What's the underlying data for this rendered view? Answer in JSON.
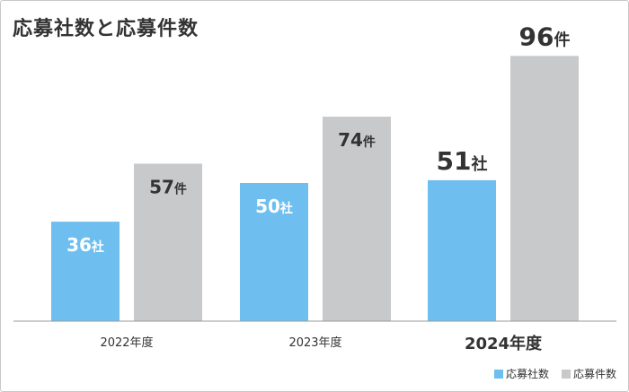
{
  "chart_data": {
    "type": "bar",
    "title": "応募社数と応募件数",
    "categories": [
      "2022年度",
      "2023年度",
      "2024年度"
    ],
    "highlight_category": "2024年度",
    "series": [
      {
        "name": "応募社数",
        "values": [
          36,
          50,
          51
        ],
        "unit": "社",
        "color": "#6ebff0"
      },
      {
        "name": "応募件数",
        "values": [
          57,
          74,
          96
        ],
        "unit": "件",
        "color": "#c8c9ca"
      }
    ],
    "ylim": [
      0,
      100
    ],
    "grid": false,
    "legend": "bottom-right"
  }
}
